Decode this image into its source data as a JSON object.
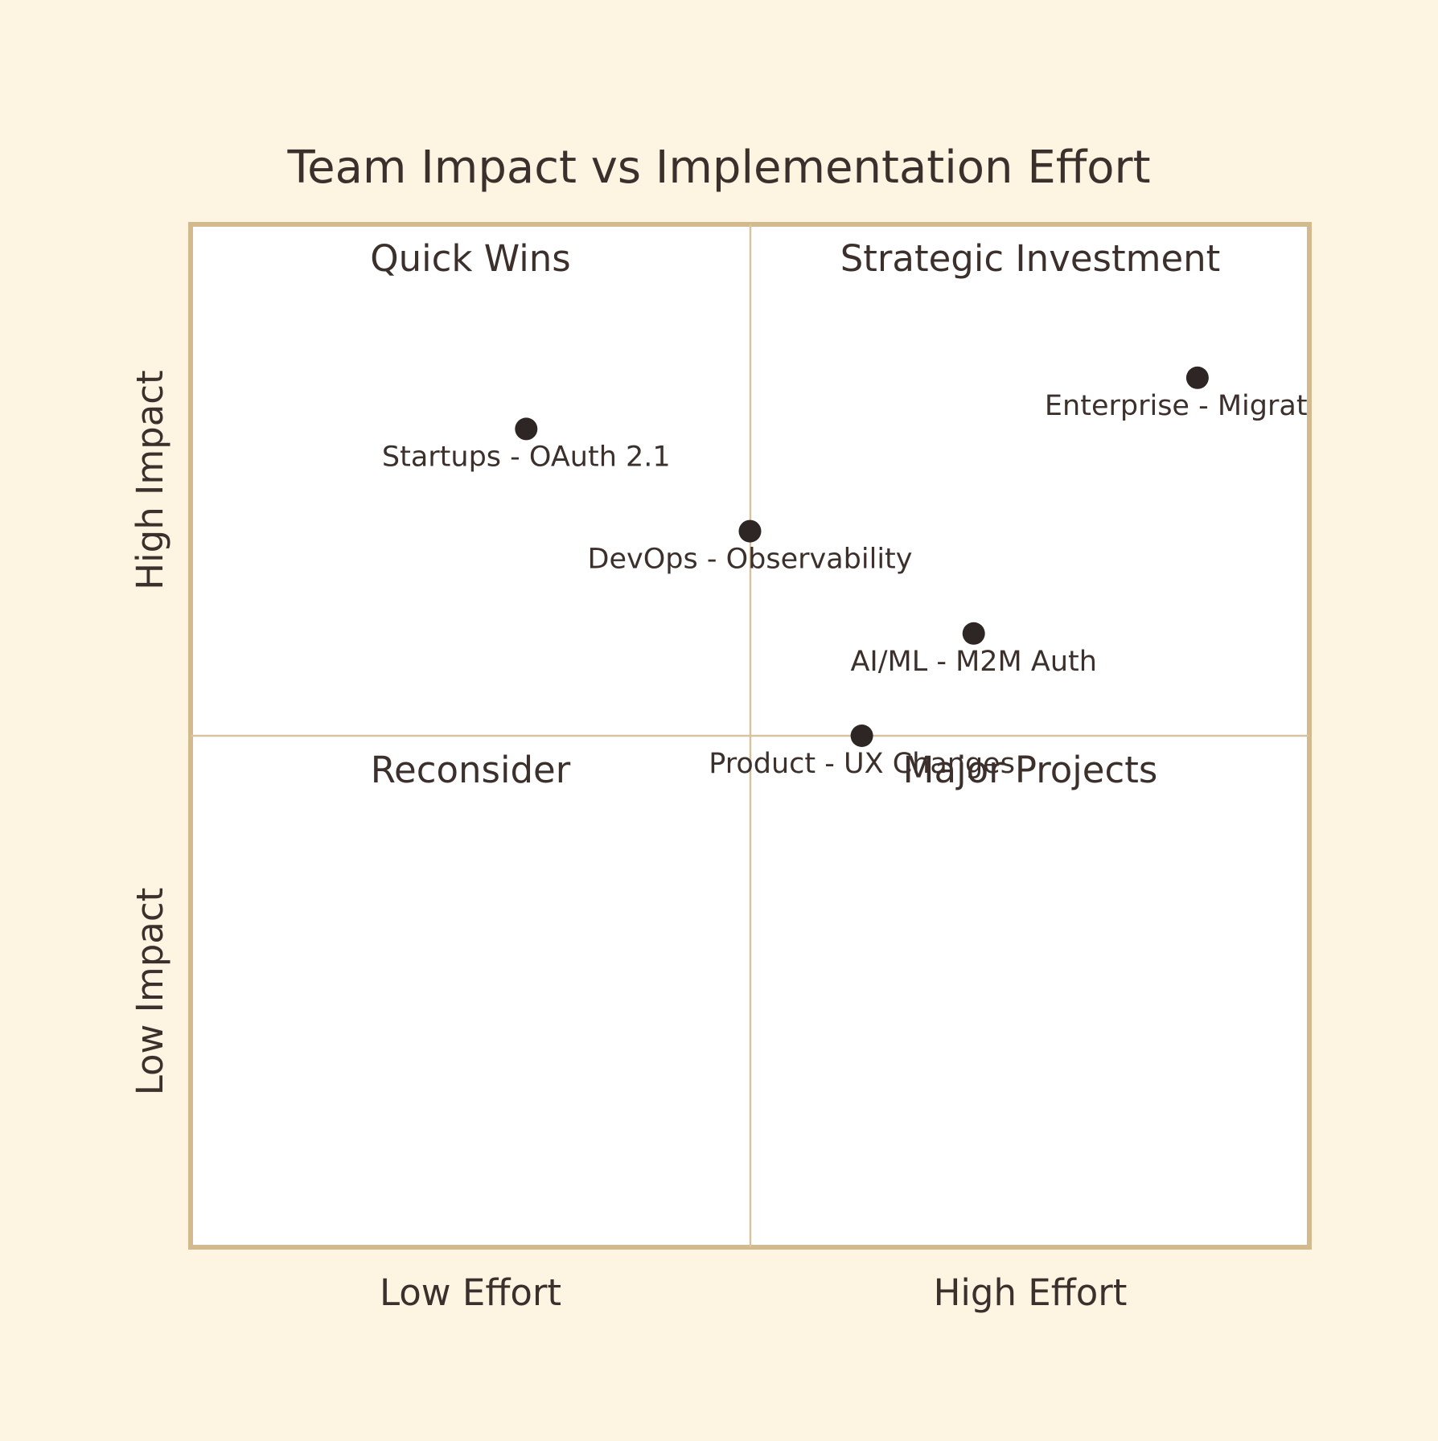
{
  "chart_data": {
    "type": "scatter",
    "subtype": "quadrant",
    "title": "Team Impact vs Implementation Effort",
    "x_axis": {
      "range": [
        0,
        1
      ],
      "labels": {
        "low": "Low Effort",
        "high": "High Effort"
      }
    },
    "y_axis": {
      "range": [
        0,
        1
      ],
      "labels": {
        "low": "Low Impact",
        "high": "High Impact"
      }
    },
    "quadrants": {
      "top_left": "Quick Wins",
      "top_right": "Strategic Investment",
      "bottom_left": "Reconsider",
      "bottom_right": "Major Projects"
    },
    "points": [
      {
        "label": "Startups - OAuth 2.1",
        "x": 0.3,
        "y": 0.8
      },
      {
        "label": "Enterprise - Migration",
        "x": 0.9,
        "y": 0.85
      },
      {
        "label": "DevOps - Observability",
        "x": 0.5,
        "y": 0.7
      },
      {
        "label": "AI/ML - M2M Auth",
        "x": 0.7,
        "y": 0.6
      },
      {
        "label": "Product - UX Changes",
        "x": 0.6,
        "y": 0.5
      }
    ],
    "grid": false,
    "legend": "none",
    "colors": {
      "background": "#fdf4e1",
      "plot_background": "#ffffff",
      "frame": "#d3b98e",
      "divider": "#d8c3a0",
      "point": "#2e2525",
      "text": "#3b302c"
    }
  }
}
